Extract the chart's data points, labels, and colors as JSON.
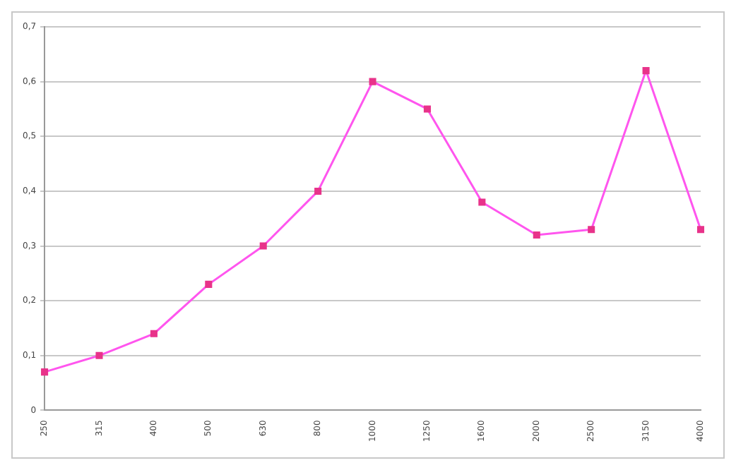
{
  "chart_data": {
    "type": "line",
    "categories": [
      "250",
      "315",
      "400",
      "500",
      "630",
      "800",
      "1000",
      "1250",
      "1600",
      "2000",
      "2500",
      "3150",
      "4000"
    ],
    "series": [
      {
        "color": "#ff55ee",
        "values": [
          0.07,
          0.1,
          0.14,
          0.23,
          0.3,
          0.4,
          0.6,
          0.55,
          0.38,
          0.32,
          0.33,
          0.62,
          0.33
        ]
      }
    ],
    "ylim": [
      0,
      0.7
    ],
    "yticks": [
      0,
      {
        "value": 0.1,
        "label": "0,1"
      },
      {
        "value": 0.2,
        "label": "0,2"
      },
      {
        "value": 0.3,
        "label": "0,3"
      },
      {
        "value": 0.4,
        "label": "0,4"
      },
      {
        "value": 0.5,
        "label": "0,5"
      },
      {
        "value": 0.6,
        "label": "0,6"
      },
      {
        "value": 0.7,
        "label": "0,7"
      }
    ],
    "grid": "y",
    "legend": false,
    "marker": "square",
    "line_style": "solid"
  }
}
